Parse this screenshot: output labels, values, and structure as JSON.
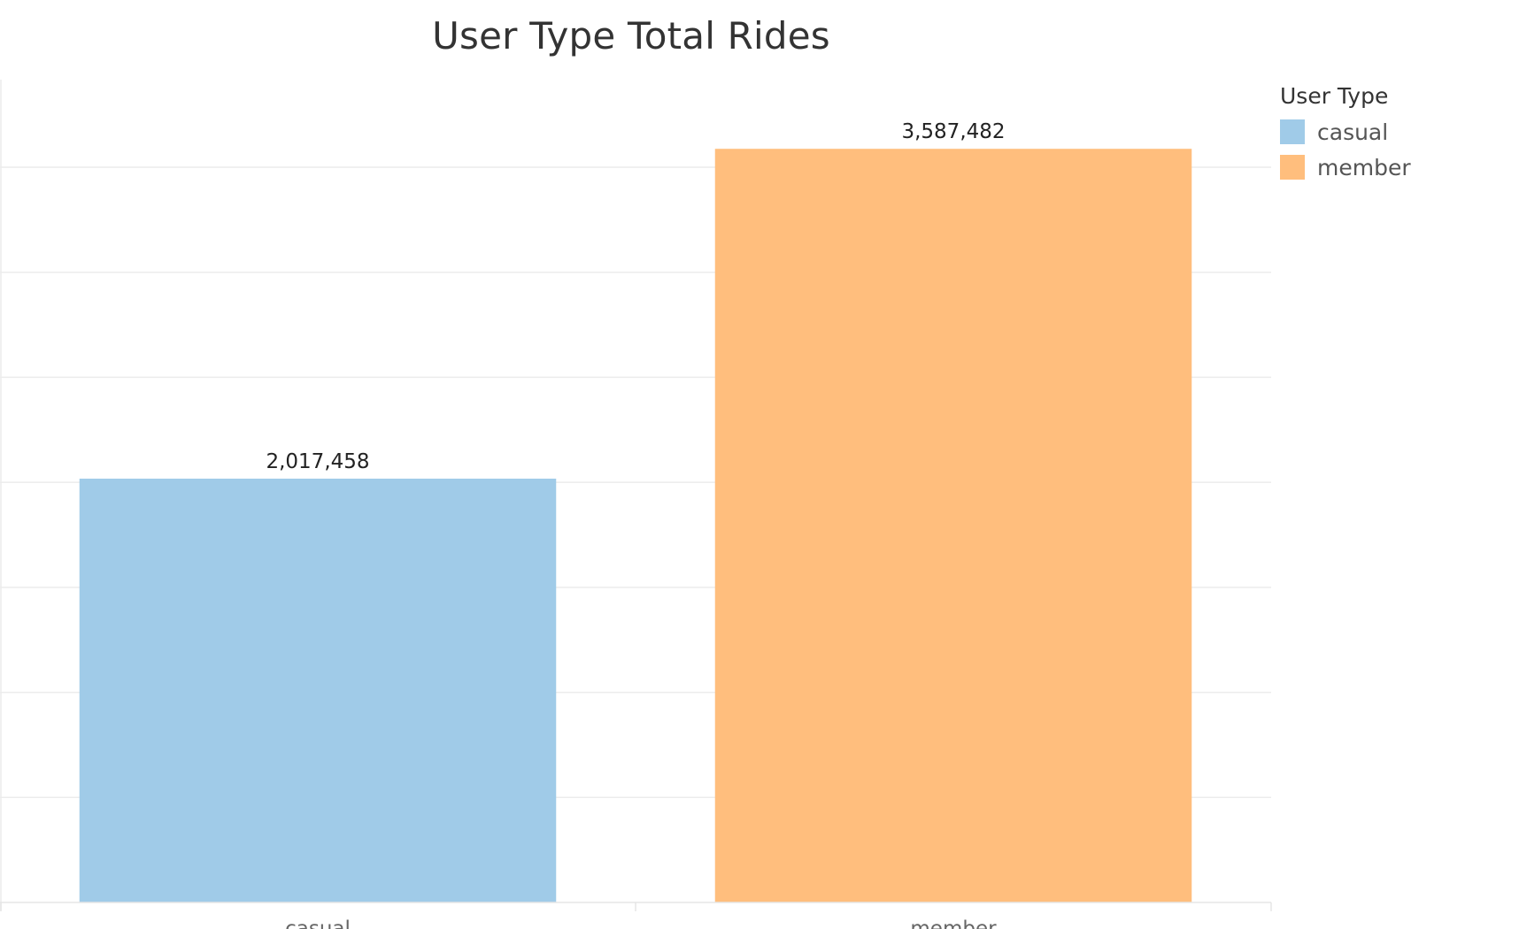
{
  "chart_data": {
    "type": "bar",
    "title": "User Type Total Rides",
    "xlabel": "",
    "ylabel": "",
    "categories": [
      "casual",
      "member"
    ],
    "values": [
      2017458,
      3587482
    ],
    "value_labels": [
      "2,017,458",
      "3,587,482"
    ],
    "ylim": [
      0,
      3900000
    ],
    "grid": true,
    "y_tick_labels_shown": false,
    "colors": [
      "#a0cbe8",
      "#ffbe7d"
    ],
    "legend": {
      "title": "User Type",
      "placement": "right",
      "entries": [
        {
          "label": "casual",
          "color": "#a0cbe8"
        },
        {
          "label": "member",
          "color": "#ffbe7d"
        }
      ]
    }
  }
}
